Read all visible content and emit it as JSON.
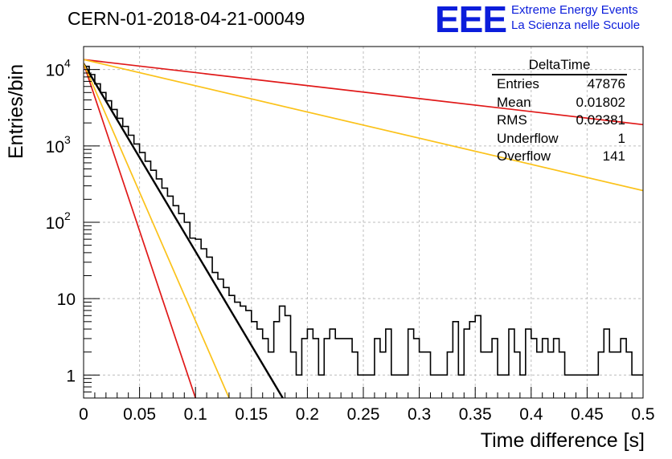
{
  "title": "CERN-01-2018-04-21-00049",
  "logo": {
    "mark": "EEE",
    "line1": "Extreme Energy Events",
    "line2": "La Scienza nelle Scuole",
    "color": "#0b1ddb"
  },
  "stats": {
    "title": "DeltaTime",
    "rows": [
      {
        "label": "Entries",
        "value": "47876"
      },
      {
        "label": "Mean",
        "value": "0.01802"
      },
      {
        "label": "RMS",
        "value": "0.02381"
      },
      {
        "label": "Underflow",
        "value": "1"
      },
      {
        "label": "Overflow",
        "value": "141"
      }
    ]
  },
  "chart_data": {
    "type": "line",
    "title": "CERN-01-2018-04-21-00049",
    "xlabel": "Time difference [s]",
    "ylabel": "Entries/bin",
    "xlim": [
      0,
      0.5
    ],
    "ylim": [
      0.5,
      20000
    ],
    "yscale": "log",
    "grid": true,
    "legend": "top-right",
    "x_ticks": [
      {
        "v": 0,
        "label": "0"
      },
      {
        "v": 0.05,
        "label": "0.05"
      },
      {
        "v": 0.1,
        "label": "0.1"
      },
      {
        "v": 0.15,
        "label": "0.15"
      },
      {
        "v": 0.2,
        "label": "0.2"
      },
      {
        "v": 0.25,
        "label": "0.25"
      },
      {
        "v": 0.3,
        "label": "0.3"
      },
      {
        "v": 0.35,
        "label": "0.35"
      },
      {
        "v": 0.4,
        "label": "0.4"
      },
      {
        "v": 0.45,
        "label": "0.45"
      },
      {
        "v": 0.5,
        "label": "0.5"
      }
    ],
    "y_ticks": [
      {
        "v": 1,
        "label": "1"
      },
      {
        "v": 10,
        "label": "10"
      }
    ],
    "y_ticks_pow": [
      {
        "v": 100,
        "base": "10",
        "exp": "2"
      },
      {
        "v": 1000,
        "base": "10",
        "exp": "3"
      },
      {
        "v": 10000,
        "base": "10",
        "exp": "4"
      }
    ],
    "histogram": {
      "bin_width": 0.005,
      "counts": [
        11000,
        8600,
        6500,
        5000,
        3900,
        3000,
        2300,
        1800,
        1380,
        1060,
        820,
        630,
        480,
        370,
        280,
        220,
        165,
        130,
        100,
        62,
        60,
        45,
        35,
        22,
        18,
        14,
        11,
        9,
        8,
        7,
        5,
        4,
        3,
        2,
        5,
        8,
        6,
        2,
        1,
        3,
        4,
        3,
        1,
        3,
        4,
        3,
        3,
        3,
        2,
        1,
        1,
        1,
        3,
        2,
        4,
        1,
        1,
        1,
        4,
        3,
        2,
        2,
        1,
        1,
        1,
        2,
        5,
        1,
        4,
        5,
        6,
        2,
        2,
        3,
        1,
        1,
        4,
        2,
        1,
        4,
        3,
        2,
        3,
        2,
        3,
        2,
        1,
        1,
        1,
        1,
        1,
        1,
        2,
        4,
        2,
        2,
        3,
        2,
        1,
        1
      ],
      "color": "#000000"
    },
    "series": [
      {
        "x": [
          0,
          0.178
        ],
        "y": [
          12000,
          0.5
        ],
        "color": "#000000"
      },
      {
        "x": [
          0,
          0.1
        ],
        "y": [
          12000,
          0.5
        ],
        "color": "#e01818"
      },
      {
        "x": [
          0,
          0.13
        ],
        "y": [
          12000,
          0.5
        ],
        "color": "#fbc21a"
      },
      {
        "x": [
          0,
          0.5
        ],
        "y": [
          13500,
          1900
        ],
        "color": "#e01818"
      },
      {
        "x": [
          0,
          0.5
        ],
        "y": [
          13500,
          260
        ],
        "color": "#fbc21a"
      }
    ]
  }
}
